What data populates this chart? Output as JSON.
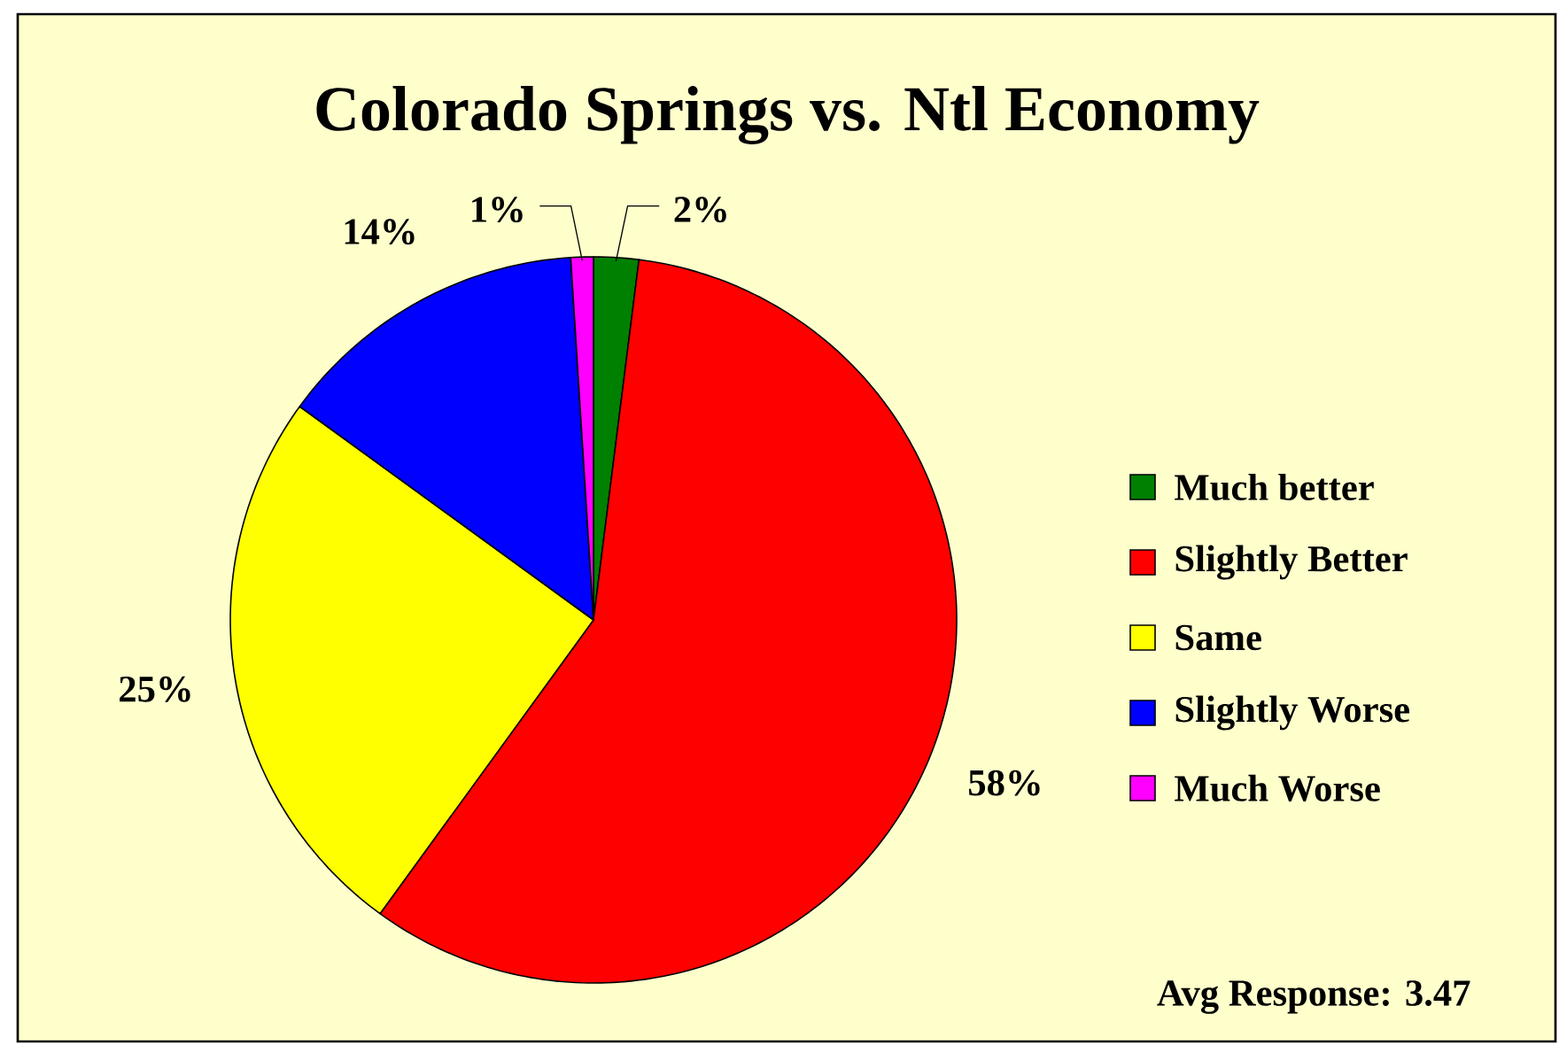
{
  "chart_data": {
    "type": "pie",
    "title": "Colorado Springs vs. Ntl Economy",
    "categories": [
      "Much better",
      "Slightly Better",
      "Same",
      "Slightly Worse",
      "Much Worse"
    ],
    "values": [
      2,
      58,
      25,
      14,
      1
    ],
    "value_labels": [
      "2%",
      "58%",
      "25%",
      "14%",
      "1%"
    ],
    "colors": [
      "#008000",
      "#ff0000",
      "#ffff00",
      "#0000ff",
      "#ff00ff"
    ],
    "legend": "right",
    "annotations": [
      "Avg Response: 3.47"
    ]
  }
}
